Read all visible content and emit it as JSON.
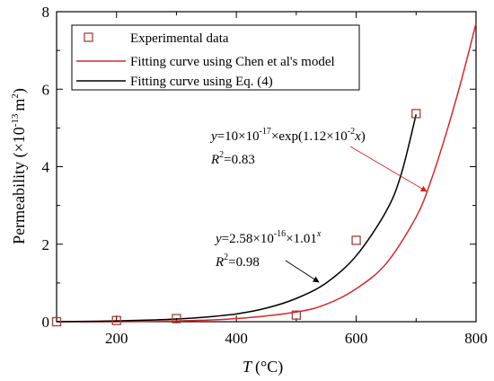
{
  "chart_data": {
    "type": "scatter",
    "xlabel": "T",
    "xlabel_unit": "(°C)",
    "ylabel": "Permeability (×10",
    "ylabel_exp": "-13",
    "ylabel_unit": "m",
    "ylabel_unit_exp": "2",
    "ylabel_close": ")",
    "xlim": [
      100,
      800
    ],
    "ylim": [
      0,
      8
    ],
    "x_ticks": [
      200,
      400,
      600,
      800
    ],
    "y_ticks": [
      0,
      2,
      4,
      6,
      8
    ],
    "series": [
      {
        "name": "Experimental data",
        "kind": "markers",
        "marker": "square-open",
        "color": "#a0403a",
        "x": [
          100,
          200,
          300,
          500,
          600,
          700
        ],
        "y": [
          0.0,
          0.03,
          0.08,
          0.17,
          2.1,
          5.37
        ]
      },
      {
        "name": "Fitting curve using Chen et al's model",
        "kind": "line",
        "color": "#d62728",
        "x": [
          100,
          200,
          300,
          400,
          500,
          550,
          600,
          650,
          700,
          725,
          750,
          775,
          800
        ],
        "y": [
          0.0,
          0.0,
          0.02,
          0.08,
          0.25,
          0.45,
          0.85,
          1.5,
          2.7,
          3.65,
          4.85,
          6.2,
          7.7
        ]
      },
      {
        "name": "Fitting curve using Eq. (4)",
        "kind": "line",
        "color": "#000000",
        "x": [
          100,
          150,
          200,
          250,
          300,
          350,
          400,
          450,
          500,
          550,
          600,
          650,
          675,
          700
        ],
        "y": [
          0.0,
          0.01,
          0.02,
          0.04,
          0.07,
          0.12,
          0.2,
          0.35,
          0.6,
          1.0,
          1.7,
          2.85,
          3.8,
          5.35
        ]
      }
    ],
    "legend_placement": "top-left",
    "annotations": {
      "eq1": {
        "y_sym": "y",
        "a": "=10×10",
        "a_exp": "-17",
        "b": "×exp(1.12×10",
        "b_exp": "-2",
        "x_sym": "x",
        "close": ")",
        "r_sym": "R",
        "r_exp": "2",
        "r_val": "=0.83",
        "arrow_color": "#d62728"
      },
      "eq2": {
        "y_sym": "y",
        "a": "=2.58×10",
        "a_exp": "-16",
        "b": "×1.01",
        "b_exp": "x",
        "r_sym": "R",
        "r_exp": "2",
        "r_val": "=0.98",
        "arrow_color": "#000000"
      }
    }
  }
}
